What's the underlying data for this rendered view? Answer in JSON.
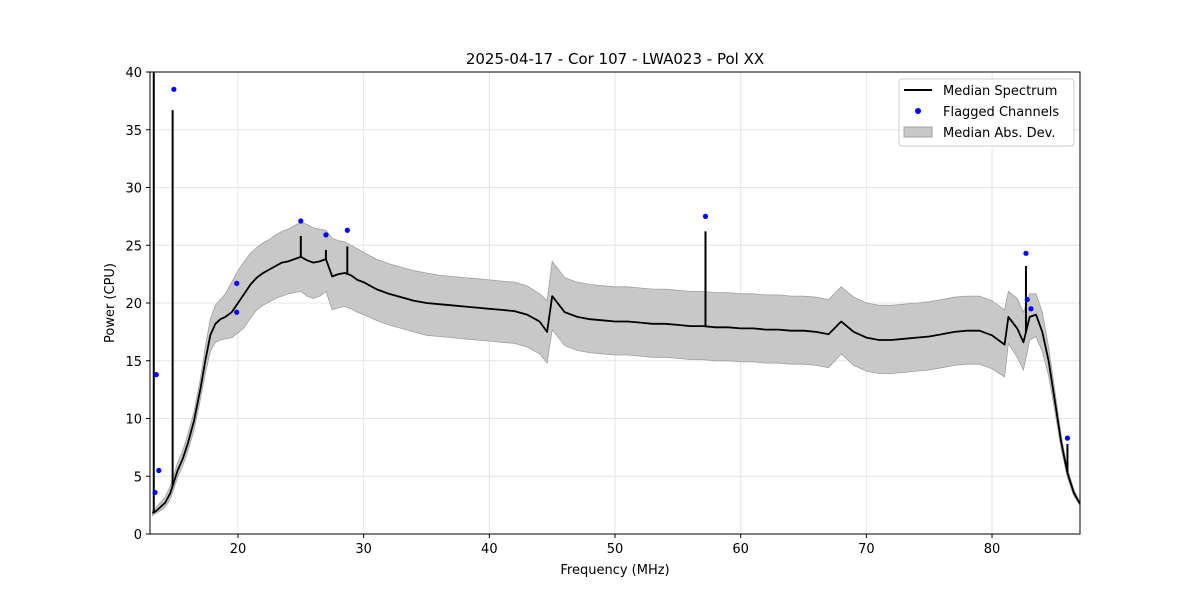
{
  "chart_data": {
    "type": "line",
    "title": "2025-04-17 - Cor 107 - LWA023 - Pol XX",
    "xlabel": "Frequency (MHz)",
    "ylabel": "Power (CPU)",
    "xlim": [
      13.0,
      87.0
    ],
    "ylim": [
      0,
      40
    ],
    "xticks": [
      20,
      30,
      40,
      50,
      60,
      70,
      80
    ],
    "yticks": [
      0,
      5,
      10,
      15,
      20,
      25,
      30,
      35,
      40
    ],
    "grid": true,
    "legend_position": "top-right",
    "legend": {
      "median": "Median Spectrum",
      "flagged": "Flagged Channels",
      "mad": "Median Abs. Dev."
    },
    "colors": {
      "median": "#000000",
      "flagged": "#0000ff",
      "mad_fill": "#c8c8c8",
      "mad_edge": "#a0a0a0"
    },
    "series": [
      {
        "name": "Median Spectrum",
        "x": [
          13.2,
          13.5,
          13.8,
          14.2,
          14.6,
          14.9,
          15.2,
          15.6,
          16.0,
          16.5,
          17.0,
          17.4,
          17.8,
          18.2,
          18.6,
          19.0,
          19.5,
          20.0,
          20.5,
          21.0,
          21.5,
          22.0,
          22.5,
          23.0,
          23.5,
          24.0,
          24.5,
          25.0,
          25.5,
          26.0,
          26.5,
          27.0,
          27.5,
          28.0,
          28.5,
          29.0,
          29.5,
          30.0,
          31.0,
          32.0,
          33.0,
          34.0,
          35.0,
          36.0,
          37.0,
          38.0,
          39.0,
          40.0,
          41.0,
          42.0,
          43.0,
          44.0,
          44.6,
          45.0,
          46.0,
          47.0,
          48.0,
          49.0,
          50.0,
          51.0,
          52.0,
          53.0,
          54.0,
          55.0,
          56.0,
          57.0,
          58.0,
          59.0,
          60.0,
          61.0,
          62.0,
          63.0,
          64.0,
          65.0,
          66.0,
          67.0,
          68.0,
          69.0,
          70.0,
          71.0,
          72.0,
          73.0,
          74.0,
          75.0,
          76.0,
          77.0,
          78.0,
          79.0,
          80.0,
          81.0,
          81.3,
          82.0,
          82.5,
          83.0,
          83.5,
          84.0,
          84.5,
          85.0,
          85.5,
          86.0,
          86.5,
          87.0
        ],
        "values": [
          1.8,
          2.0,
          2.3,
          2.7,
          3.5,
          4.5,
          5.5,
          6.5,
          7.8,
          9.8,
          12.5,
          15.0,
          17.2,
          18.2,
          18.6,
          18.8,
          19.2,
          20.0,
          20.8,
          21.6,
          22.2,
          22.6,
          22.9,
          23.2,
          23.5,
          23.6,
          23.8,
          24.0,
          23.7,
          23.5,
          23.6,
          23.8,
          22.3,
          22.5,
          22.6,
          22.4,
          22.0,
          21.8,
          21.2,
          20.8,
          20.5,
          20.2,
          20.0,
          19.9,
          19.8,
          19.7,
          19.6,
          19.5,
          19.4,
          19.3,
          19.0,
          18.4,
          17.5,
          20.6,
          19.2,
          18.8,
          18.6,
          18.5,
          18.4,
          18.4,
          18.3,
          18.2,
          18.2,
          18.1,
          18.0,
          18.0,
          17.9,
          17.9,
          17.8,
          17.8,
          17.7,
          17.7,
          17.6,
          17.6,
          17.5,
          17.3,
          18.4,
          17.5,
          17.0,
          16.8,
          16.8,
          16.9,
          17.0,
          17.1,
          17.3,
          17.5,
          17.6,
          17.6,
          17.2,
          16.4,
          18.8,
          17.8,
          16.6,
          18.8,
          19.0,
          17.5,
          15.0,
          11.5,
          8.0,
          5.3,
          3.6,
          2.6
        ],
        "spikes": [
          [
            13.3,
            40.0
          ],
          [
            14.8,
            36.7
          ],
          [
            25.0,
            25.8
          ],
          [
            27.0,
            24.6
          ],
          [
            28.7,
            24.9
          ],
          [
            57.2,
            26.2
          ],
          [
            82.7,
            23.2
          ],
          [
            86.0,
            7.8
          ]
        ]
      },
      {
        "name": "Median Abs. Dev.",
        "upper": [
          2.0,
          2.3,
          2.7,
          3.2,
          4.1,
          5.1,
          6.2,
          7.2,
          8.6,
          10.6,
          13.4,
          16.2,
          18.6,
          19.8,
          20.3,
          20.8,
          21.8,
          22.8,
          23.6,
          24.3,
          24.8,
          25.2,
          25.5,
          25.9,
          26.2,
          26.4,
          26.7,
          27.0,
          26.8,
          26.5,
          26.4,
          26.3,
          25.6,
          25.4,
          25.3,
          25.0,
          24.7,
          24.4,
          23.8,
          23.4,
          23.1,
          22.8,
          22.6,
          22.4,
          22.3,
          22.2,
          22.1,
          22.0,
          21.9,
          21.8,
          21.5,
          20.8,
          20.2,
          23.6,
          22.2,
          21.8,
          21.6,
          21.5,
          21.4,
          21.4,
          21.3,
          21.2,
          21.2,
          21.1,
          21.0,
          21.0,
          20.9,
          20.9,
          20.8,
          20.8,
          20.7,
          20.7,
          20.6,
          20.6,
          20.5,
          20.3,
          21.4,
          20.5,
          20.0,
          19.8,
          19.8,
          19.9,
          20.0,
          20.1,
          20.3,
          20.5,
          20.6,
          20.6,
          20.2,
          19.4,
          21.0,
          20.4,
          19.2,
          20.8,
          20.8,
          19.2,
          16.2,
          12.4,
          8.6,
          5.7,
          3.9,
          2.7
        ],
        "lower": [
          1.6,
          1.8,
          2.0,
          2.3,
          3.0,
          3.9,
          4.9,
          5.9,
          7.1,
          9.0,
          11.6,
          13.9,
          15.8,
          16.6,
          16.8,
          16.9,
          17.0,
          17.4,
          17.9,
          18.7,
          19.4,
          19.8,
          20.1,
          20.4,
          20.6,
          20.8,
          20.9,
          21.0,
          20.6,
          20.4,
          20.6,
          21.0,
          19.4,
          19.6,
          19.7,
          19.5,
          19.2,
          19.0,
          18.5,
          18.1,
          17.8,
          17.5,
          17.2,
          17.1,
          17.0,
          16.9,
          16.8,
          16.7,
          16.6,
          16.5,
          16.2,
          15.6,
          14.8,
          17.7,
          16.3,
          15.9,
          15.7,
          15.6,
          15.5,
          15.5,
          15.4,
          15.3,
          15.3,
          15.2,
          15.1,
          15.1,
          15.0,
          15.0,
          14.9,
          14.9,
          14.8,
          14.8,
          14.7,
          14.7,
          14.6,
          14.4,
          15.6,
          14.6,
          14.1,
          13.9,
          13.9,
          14.0,
          14.1,
          14.2,
          14.4,
          14.6,
          14.7,
          14.7,
          14.3,
          13.6,
          16.5,
          15.3,
          14.2,
          16.8,
          17.1,
          15.8,
          13.7,
          10.6,
          7.4,
          4.9,
          3.3,
          2.5
        ]
      },
      {
        "name": "Flagged Channels",
        "points": [
          [
            13.4,
            3.6
          ],
          [
            13.5,
            13.8
          ],
          [
            13.7,
            5.5
          ],
          [
            14.9,
            38.5
          ],
          [
            19.9,
            21.7
          ],
          [
            19.9,
            19.2
          ],
          [
            25.0,
            27.1
          ],
          [
            27.0,
            25.9
          ],
          [
            28.7,
            26.3
          ],
          [
            57.2,
            27.5
          ],
          [
            82.7,
            24.3
          ],
          [
            82.8,
            20.3
          ],
          [
            83.1,
            19.5
          ],
          [
            86.0,
            8.3
          ]
        ]
      }
    ]
  }
}
